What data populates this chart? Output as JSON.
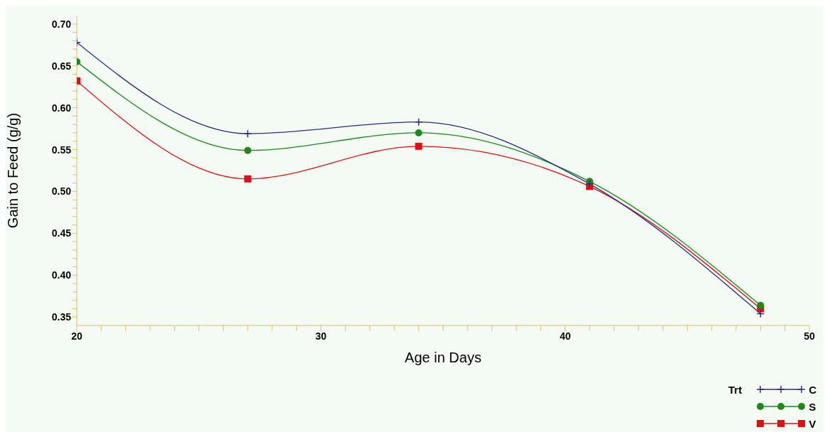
{
  "chart_data": {
    "type": "line",
    "xlabel": "Age in Days",
    "ylabel": "Gain to Feed (g/g)",
    "legend_title": "Trt",
    "legend": "bottom right",
    "grid": false,
    "line_style": "solid",
    "x": [
      20,
      27,
      34,
      41,
      48
    ],
    "xlim": [
      20,
      50
    ],
    "xticks": [
      20,
      {
        "value": 21,
        "label": null
      },
      {
        "value": 22,
        "label": null
      },
      {
        "value": 23,
        "label": null
      },
      {
        "value": 24,
        "label": null
      },
      {
        "value": 25,
        "label": null
      },
      {
        "value": 26,
        "label": null
      },
      {
        "value": 27,
        "label": null
      },
      {
        "value": 28,
        "label": null
      },
      {
        "value": 29,
        "label": null
      },
      30,
      {
        "value": 31,
        "label": null
      },
      {
        "value": 32,
        "label": null
      },
      {
        "value": 33,
        "label": null
      },
      {
        "value": 34,
        "label": null
      },
      {
        "value": 35,
        "label": null
      },
      {
        "value": 36,
        "label": null
      },
      {
        "value": 37,
        "label": null
      },
      {
        "value": 38,
        "label": null
      },
      {
        "value": 39,
        "label": null
      },
      40,
      {
        "value": 41,
        "label": null
      },
      {
        "value": 42,
        "label": null
      },
      {
        "value": 43,
        "label": null
      },
      {
        "value": 44,
        "label": null
      },
      {
        "value": 45,
        "label": null
      },
      {
        "value": 46,
        "label": null
      },
      {
        "value": 47,
        "label": null
      },
      {
        "value": 48,
        "label": null
      },
      {
        "value": 49,
        "label": null
      },
      50
    ],
    "ylim": [
      0.34,
      0.71
    ],
    "yticks": [
      {
        "value": 0.35,
        "label": "0.35"
      },
      {
        "value": 0.36,
        "label": null
      },
      {
        "value": 0.37,
        "label": null
      },
      {
        "value": 0.38,
        "label": null
      },
      {
        "value": 0.39,
        "label": null
      },
      {
        "value": 0.4,
        "label": "0.40"
      },
      {
        "value": 0.41,
        "label": null
      },
      {
        "value": 0.42,
        "label": null
      },
      {
        "value": 0.43,
        "label": null
      },
      {
        "value": 0.44,
        "label": null
      },
      {
        "value": 0.45,
        "label": "0.45"
      },
      {
        "value": 0.46,
        "label": null
      },
      {
        "value": 0.47,
        "label": null
      },
      {
        "value": 0.48,
        "label": null
      },
      {
        "value": 0.49,
        "label": null
      },
      {
        "value": 0.5,
        "label": "0.50"
      },
      {
        "value": 0.51,
        "label": null
      },
      {
        "value": 0.52,
        "label": null
      },
      {
        "value": 0.53,
        "label": null
      },
      {
        "value": 0.54,
        "label": null
      },
      {
        "value": 0.55,
        "label": "0.55"
      },
      {
        "value": 0.56,
        "label": null
      },
      {
        "value": 0.57,
        "label": null
      },
      {
        "value": 0.58,
        "label": null
      },
      {
        "value": 0.59,
        "label": null
      },
      {
        "value": 0.6,
        "label": "0.60"
      },
      {
        "value": 0.61,
        "label": null
      },
      {
        "value": 0.62,
        "label": null
      },
      {
        "value": 0.63,
        "label": null
      },
      {
        "value": 0.64,
        "label": null
      },
      {
        "value": 0.65,
        "label": "0.65"
      },
      {
        "value": 0.66,
        "label": null
      },
      {
        "value": 0.67,
        "label": null
      },
      {
        "value": 0.68,
        "label": null
      },
      {
        "value": 0.69,
        "label": null
      },
      {
        "value": 0.7,
        "label": "0.70"
      }
    ],
    "series": [
      {
        "name": "C",
        "color": "#2b2b80",
        "marker": "cross",
        "values": [
          0.678,
          0.569,
          0.583,
          0.509,
          0.354
        ]
      },
      {
        "name": "S",
        "color": "#1a8a1a",
        "marker": "circle",
        "values": [
          0.655,
          0.549,
          0.57,
          0.512,
          0.364
        ]
      },
      {
        "name": "V",
        "color": "#e01010",
        "marker": "square",
        "values": [
          0.632,
          0.515,
          0.554,
          0.506,
          0.36
        ]
      }
    ]
  }
}
